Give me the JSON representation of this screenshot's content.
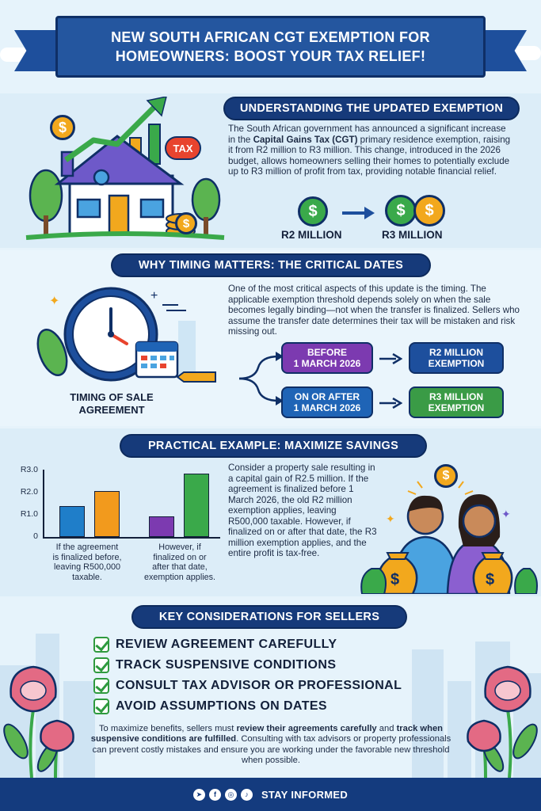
{
  "title": "NEW SOUTH AFRICAN CGT EXEMPTION FOR\nHOMEOWNERS: BOOST YOUR TAX RELIEF!",
  "colors": {
    "navy": "#163a7a",
    "green": "#3aa94a",
    "gold": "#f2a81d",
    "purple": "#7c3ab0",
    "blue": "#1f64b6",
    "background": "#e6f3fb"
  },
  "section1": {
    "heading": "UNDERSTANDING THE UPDATED EXEMPTION",
    "text_1": "The South African government has announced a significant increase in the ",
    "text_bold": "Capital Gains Tax (CGT)",
    "text_2": " primary residence exemption, raising it from R2 million to R3 million. This change, introduced in the 2026 budget, allows homeowners selling their homes to potentially exclude up to R3 million of profit from tax, providing notable financial relief.",
    "house_tag": "TAX",
    "coin_symbol": "$",
    "from_label": "R2 MILLION",
    "to_label": "R3 MILLION",
    "icons": [
      "house-icon",
      "growth-arrow-icon",
      "coin-icon",
      "tax-tag-icon",
      "arrow-right-icon"
    ]
  },
  "section2": {
    "heading": "WHY TIMING MATTERS: THE CRITICAL DATES",
    "text": "One of the most critical aspects of this update is the timing. The applicable exemption threshold depends solely on when the sale becomes legally binding—not when the transfer is finalized. Sellers who assume the transfer date determines their tax will be mistaken and risk missing out.",
    "illustration_label": "TIMING OF SALE\nAGREEMENT",
    "before_box": "BEFORE\n1 MARCH 2026",
    "before_result": "R2 MILLION\nEXEMPTION",
    "after_box": "ON OR AFTER\n1 MARCH 2026",
    "after_result": "R3 MILLION\nEXEMPTION",
    "icons": [
      "clock-icon",
      "calendar-icon",
      "pencil-icon",
      "branch-arrow-icon"
    ]
  },
  "section3": {
    "heading": "PRACTICAL EXAMPLE: MAXIMIZE SAVINGS",
    "text": "Consider a property sale resulting in a capital gain of R2.5 million. If the agreement is finalized before 1 March 2026, the old R2 million exemption applies, leaving R500,000 taxable. However, if finalized on or after that date, the R3 million exemption applies, and the entire profit is tax-free.",
    "caption_left": "If the agreement\nis finalized before,\nleaving R500,000\ntaxable.",
    "caption_right": "However, if\nfinalized on or\nafter that date,\nexemption applies.",
    "coin_symbol": "$",
    "icons": [
      "couple-icon",
      "money-bag-icon",
      "coin-icon"
    ]
  },
  "chart_data": {
    "type": "bar",
    "yticks": [
      "R3.0",
      "R2.0",
      "R1.0",
      "0"
    ],
    "ylim": [
      0,
      3.0
    ],
    "groups": [
      {
        "label": "If the agreement is finalized before, leaving R500,000 taxable.",
        "values": [
          1.4,
          2.1
        ],
        "colors": [
          "#1f7ec9",
          "#f29a1d"
        ]
      },
      {
        "label": "However, if finalized on or after that date, exemption applies.",
        "values": [
          0.95,
          2.9
        ],
        "colors": [
          "#7c3ab0",
          "#3aa94a"
        ]
      }
    ],
    "xlabel": "",
    "ylabel": ""
  },
  "section4": {
    "heading": "KEY CONSIDERATIONS FOR SELLERS",
    "items": [
      "REVIEW AGREEMENT CAREFULLY",
      "TRACK SUSPENSIVE CONDITIONS",
      "CONSULT TAX ADVISOR OR PROFESSIONAL",
      "AVOID ASSUMPTIONS ON DATES"
    ],
    "text_1": "To maximize benefits, sellers must ",
    "text_b1": "review their agreements carefully",
    "text_2": " and ",
    "text_b2": "track when suspensive conditions are fulfilled",
    "text_3": ". Consulting with tax advisors or property professionals can prevent costly mistakes and ensure you are working under the favorable new threshold when possible.",
    "icons": [
      "check-icon",
      "protea-flower-icon",
      "city-skyline-icon"
    ]
  },
  "footer": {
    "label": "STAY INFORMED",
    "social_icons": [
      "telegram-icon",
      "facebook-icon",
      "instagram-icon",
      "tiktok-icon"
    ],
    "social_glyphs": [
      "➤",
      "f",
      "◎",
      "♪"
    ]
  }
}
